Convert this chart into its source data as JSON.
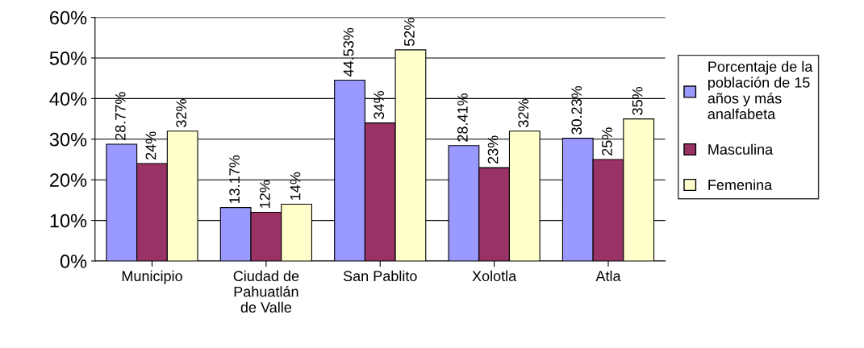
{
  "chart_data": {
    "type": "bar",
    "categories": [
      "Municipio",
      "Ciudad de Pahuatlán de Valle",
      "San Pablito",
      "Xolotla",
      "Atla"
    ],
    "series": [
      {
        "name": "Porcentaje de la población de 15 años y más analfabeta",
        "color": "#9999ff",
        "values": [
          28.77,
          13.17,
          44.53,
          28.41,
          30.23
        ],
        "value_labels": [
          "28.77%",
          "13.17%",
          "44.53%",
          "28.41%",
          "30.23%"
        ]
      },
      {
        "name": "Masculina",
        "color": "#993366",
        "values": [
          24,
          12,
          34,
          23,
          25
        ],
        "value_labels": [
          "24%",
          "12%",
          "34%",
          "23%",
          "25%"
        ]
      },
      {
        "name": "Femenina",
        "color": "#ffffcc",
        "values": [
          32,
          14,
          52,
          32,
          35
        ],
        "value_labels": [
          "32%",
          "14%",
          "52%",
          "32%",
          "35%"
        ]
      }
    ],
    "ylim": [
      0,
      60
    ],
    "yticks": [
      {
        "value": 0,
        "label": "0%"
      },
      {
        "value": 10,
        "label": "10%"
      },
      {
        "value": 20,
        "label": "20%"
      },
      {
        "value": 30,
        "label": "30%"
      },
      {
        "value": 40,
        "label": "40%"
      },
      {
        "value": 50,
        "label": "50%"
      },
      {
        "value": 60,
        "label": "60%"
      }
    ],
    "grid": "y",
    "legend": "right"
  }
}
